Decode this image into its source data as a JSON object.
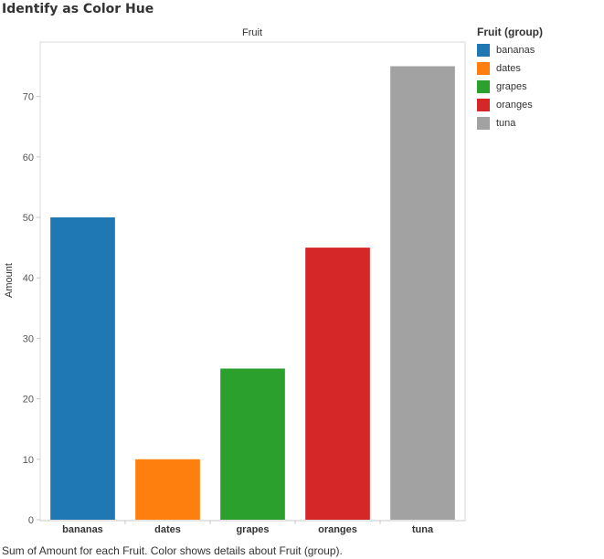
{
  "page": {
    "title": "Identify as Color Hue",
    "caption": "Sum of Amount for each Fruit.  Color shows details about Fruit (group)."
  },
  "legend": {
    "title": "Fruit (group)",
    "items": [
      {
        "label": "bananas",
        "color": "#1f77b4"
      },
      {
        "label": "dates",
        "color": "#ff7f0e"
      },
      {
        "label": "grapes",
        "color": "#2ca02c"
      },
      {
        "label": "oranges",
        "color": "#d62728"
      },
      {
        "label": "tuna",
        "color": "#a2a2a2"
      }
    ]
  },
  "chart_data": {
    "type": "bar",
    "column_header": "Fruit",
    "ylabel": "Amount",
    "categories": [
      "bananas",
      "dates",
      "grapes",
      "oranges",
      "tuna"
    ],
    "values": [
      50,
      10,
      25,
      45,
      75
    ],
    "colors": [
      "#1f77b4",
      "#ff7f0e",
      "#2ca02c",
      "#d62728",
      "#a2a2a2"
    ],
    "ylim": [
      0,
      80
    ],
    "yticks": [
      0,
      10,
      20,
      30,
      40,
      50,
      60,
      70
    ],
    "grid": false,
    "legend_position": "right"
  }
}
